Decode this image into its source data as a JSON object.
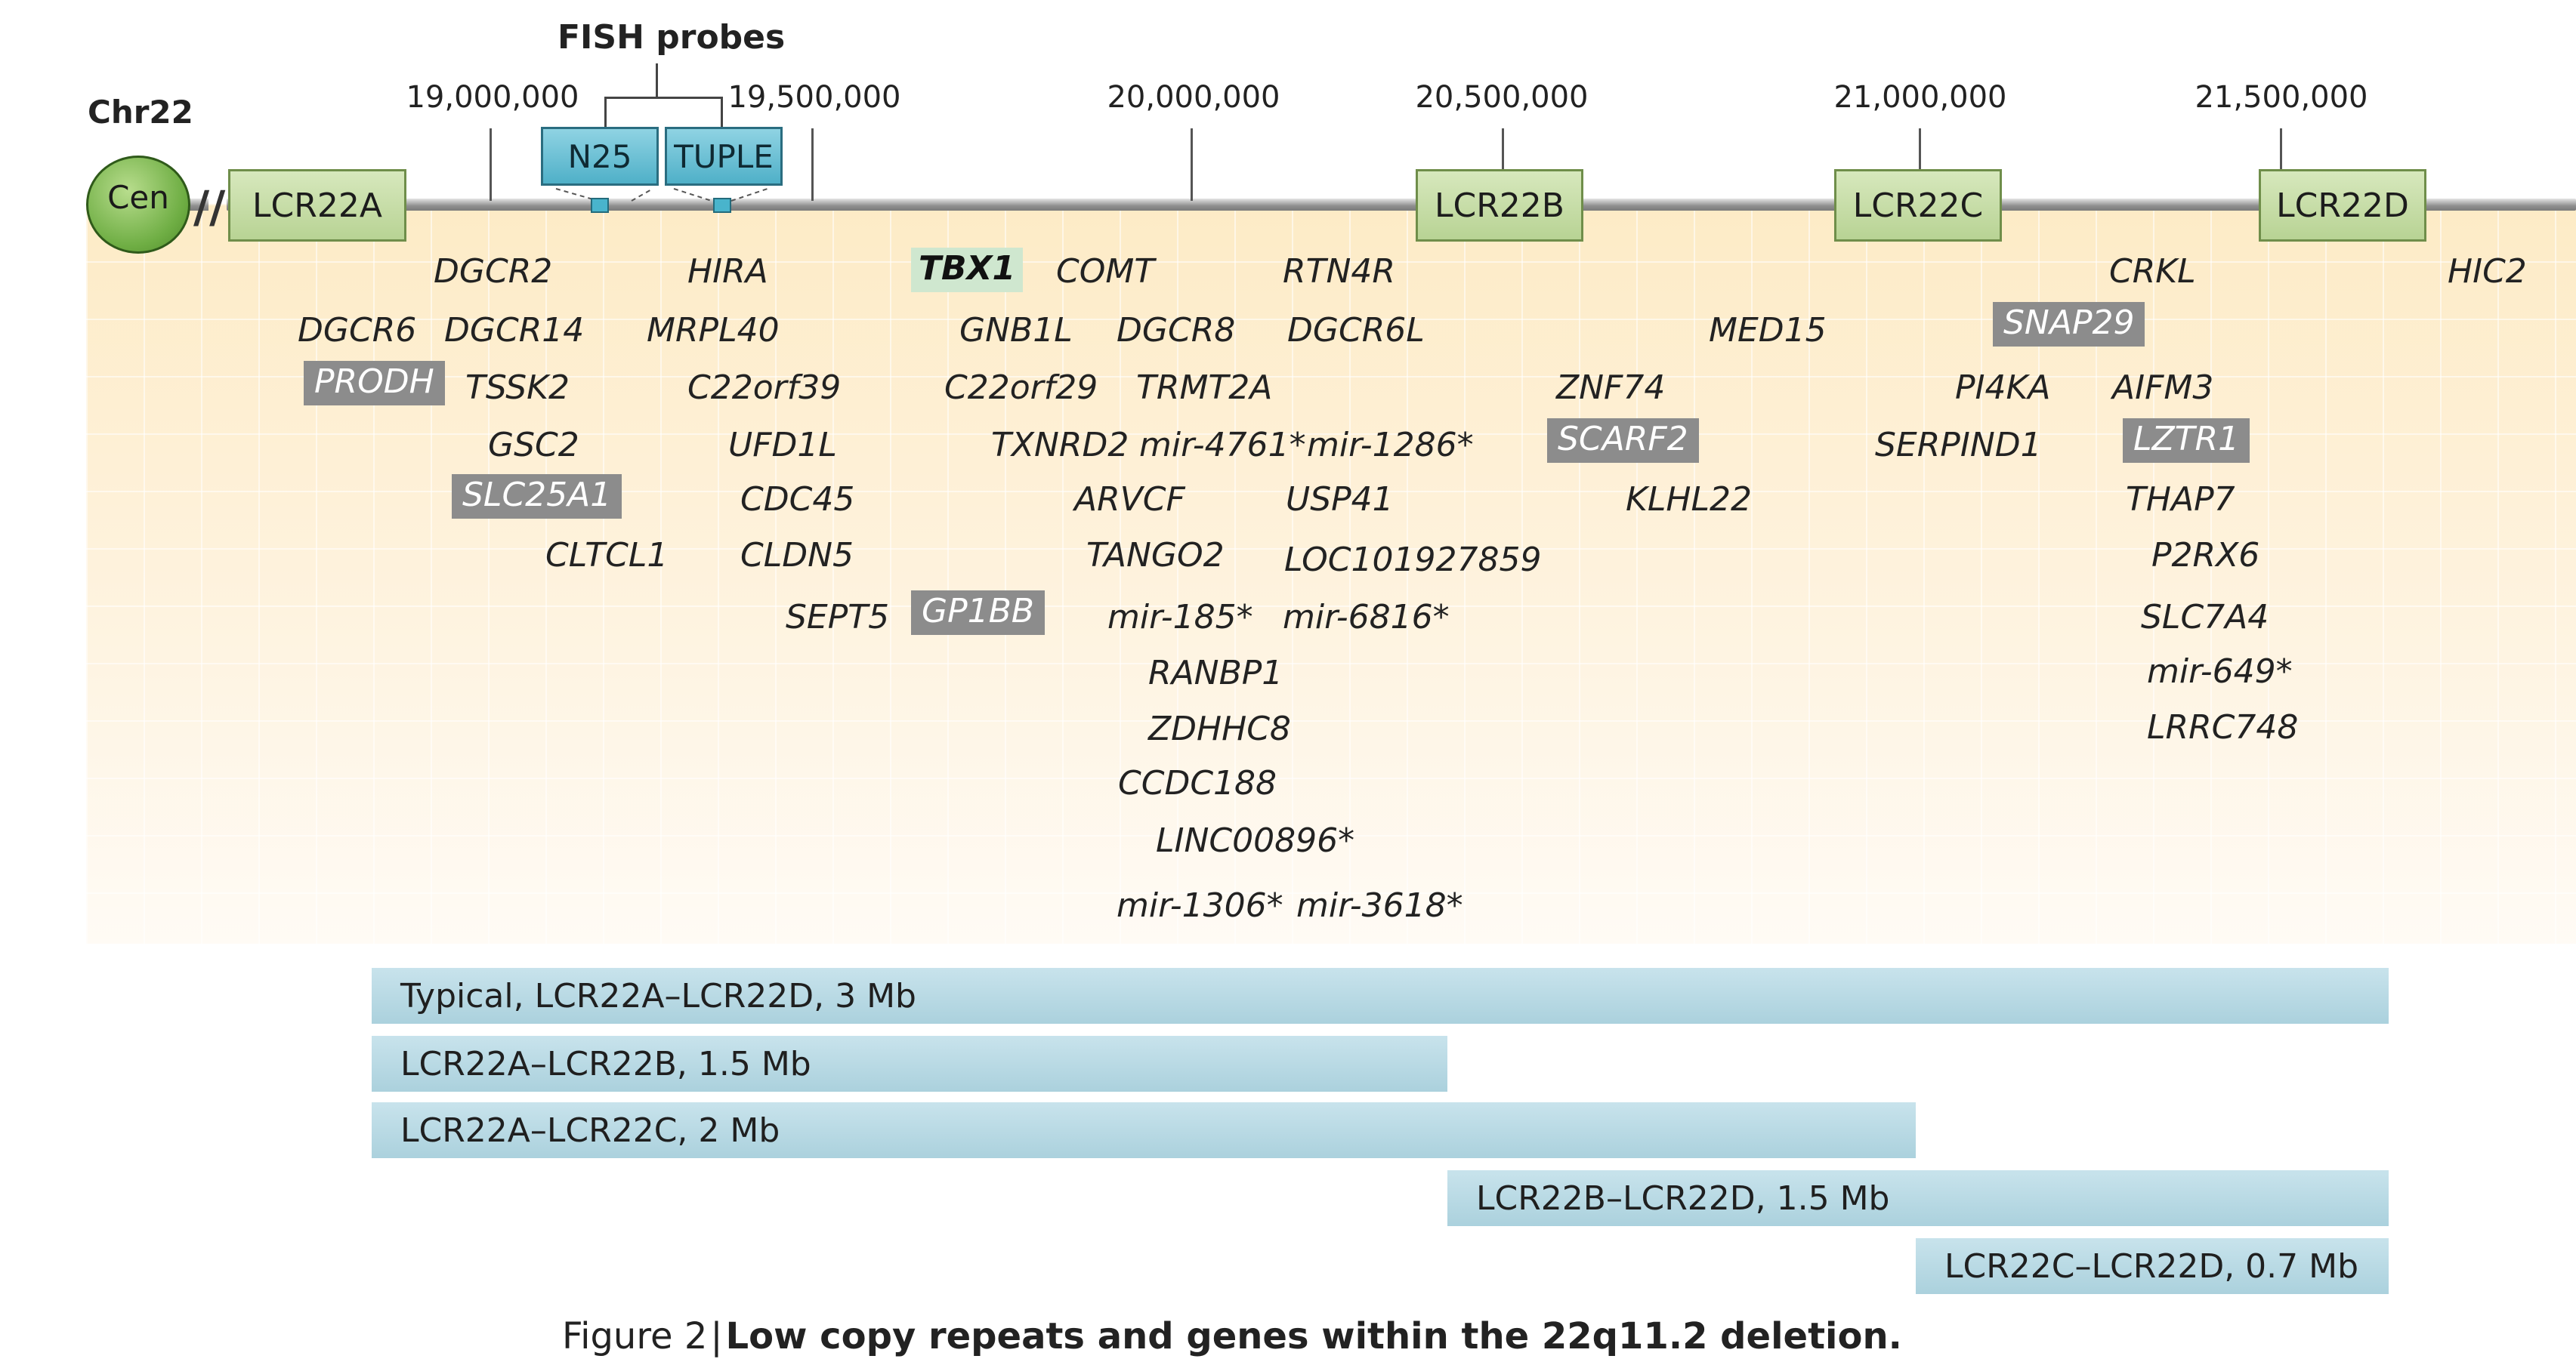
{
  "chromosome_label": "Chr22",
  "centromere_label": "Cen",
  "break_symbol": "//",
  "fish": {
    "title": "FISH probes",
    "probes": [
      "N25",
      "TUPLE"
    ]
  },
  "coordinates": [
    "19,000,000",
    "19,500,000",
    "20,000,000",
    "20,500,000",
    "21,000,000",
    "21,500,000"
  ],
  "lcr_blocks": [
    "LCR22A",
    "LCR22B",
    "LCR22C",
    "LCR22D"
  ],
  "genes": [
    {
      "name": "DGCR2",
      "style": "plain"
    },
    {
      "name": "HIRA",
      "style": "plain"
    },
    {
      "name": "TBX1",
      "style": "key"
    },
    {
      "name": "COMT",
      "style": "plain"
    },
    {
      "name": "RTN4R",
      "style": "plain"
    },
    {
      "name": "CRKL",
      "style": "plain"
    },
    {
      "name": "HIC2",
      "style": "plain"
    },
    {
      "name": "DGCR6",
      "style": "plain"
    },
    {
      "name": "DGCR14",
      "style": "plain"
    },
    {
      "name": "MRPL40",
      "style": "plain"
    },
    {
      "name": "GNB1L",
      "style": "plain"
    },
    {
      "name": "DGCR8",
      "style": "plain"
    },
    {
      "name": "DGCR6L",
      "style": "plain"
    },
    {
      "name": "MED15",
      "style": "plain"
    },
    {
      "name": "SNAP29",
      "style": "highlight"
    },
    {
      "name": "PRODH",
      "style": "highlight"
    },
    {
      "name": "TSSK2",
      "style": "plain"
    },
    {
      "name": "C22orf39",
      "style": "plain"
    },
    {
      "name": "C22orf29",
      "style": "plain"
    },
    {
      "name": "TRMT2A",
      "style": "plain"
    },
    {
      "name": "ZNF74",
      "style": "plain"
    },
    {
      "name": "PI4KA",
      "style": "plain"
    },
    {
      "name": "AIFM3",
      "style": "plain"
    },
    {
      "name": "GSC2",
      "style": "plain"
    },
    {
      "name": "UFD1L",
      "style": "plain"
    },
    {
      "name": "TXNRD2",
      "style": "plain"
    },
    {
      "name": "mir-4761*",
      "style": "plain"
    },
    {
      "name": "mir-1286*",
      "style": "plain"
    },
    {
      "name": "SCARF2",
      "style": "highlight"
    },
    {
      "name": "SERPIND1",
      "style": "plain"
    },
    {
      "name": "LZTR1",
      "style": "highlight"
    },
    {
      "name": "SLC25A1",
      "style": "highlight"
    },
    {
      "name": "CDC45",
      "style": "plain"
    },
    {
      "name": "ARVCF",
      "style": "plain"
    },
    {
      "name": "USP41",
      "style": "plain"
    },
    {
      "name": "KLHL22",
      "style": "plain"
    },
    {
      "name": "THAP7",
      "style": "plain"
    },
    {
      "name": "CLTCL1",
      "style": "plain"
    },
    {
      "name": "CLDN5",
      "style": "plain"
    },
    {
      "name": "TANGO2",
      "style": "plain"
    },
    {
      "name": "LOC101927859",
      "style": "plain"
    },
    {
      "name": "P2RX6",
      "style": "plain"
    },
    {
      "name": "SEPT5",
      "style": "plain"
    },
    {
      "name": "GP1BB",
      "style": "highlight"
    },
    {
      "name": "mir-185*",
      "style": "plain"
    },
    {
      "name": "mir-6816*",
      "style": "plain"
    },
    {
      "name": "SLC7A4",
      "style": "plain"
    },
    {
      "name": "RANBP1",
      "style": "plain"
    },
    {
      "name": "mir-649*",
      "style": "plain"
    },
    {
      "name": "ZDHHC8",
      "style": "plain"
    },
    {
      "name": "LRRC748",
      "style": "plain"
    },
    {
      "name": "CCDC188",
      "style": "plain"
    },
    {
      "name": "LINC00896*",
      "style": "plain"
    },
    {
      "name": "mir-1306*",
      "style": "plain"
    },
    {
      "name": "mir-3618*",
      "style": "plain"
    }
  ],
  "deletions": [
    "Typical, LCR22A–LCR22D, 3 Mb",
    "LCR22A–LCR22B, 1.5 Mb",
    "LCR22A–LCR22C, 2 Mb",
    "LCR22B–LCR22D, 1.5 Mb",
    "LCR22C–LCR22D, 0.7 Mb"
  ],
  "caption": {
    "prefix": "Figure 2",
    "separator": "|",
    "text": "Low copy repeats and genes within the 22q11.2 deletion."
  },
  "colors": {
    "lcr_fill": "#c3dba2",
    "probe_fill": "#6cc2d6",
    "highlight_gene": "#8c8c8c",
    "key_gene": "#cfe7cf",
    "deletion_bar": "#bcdbe5",
    "centromere": "#6fae44"
  }
}
